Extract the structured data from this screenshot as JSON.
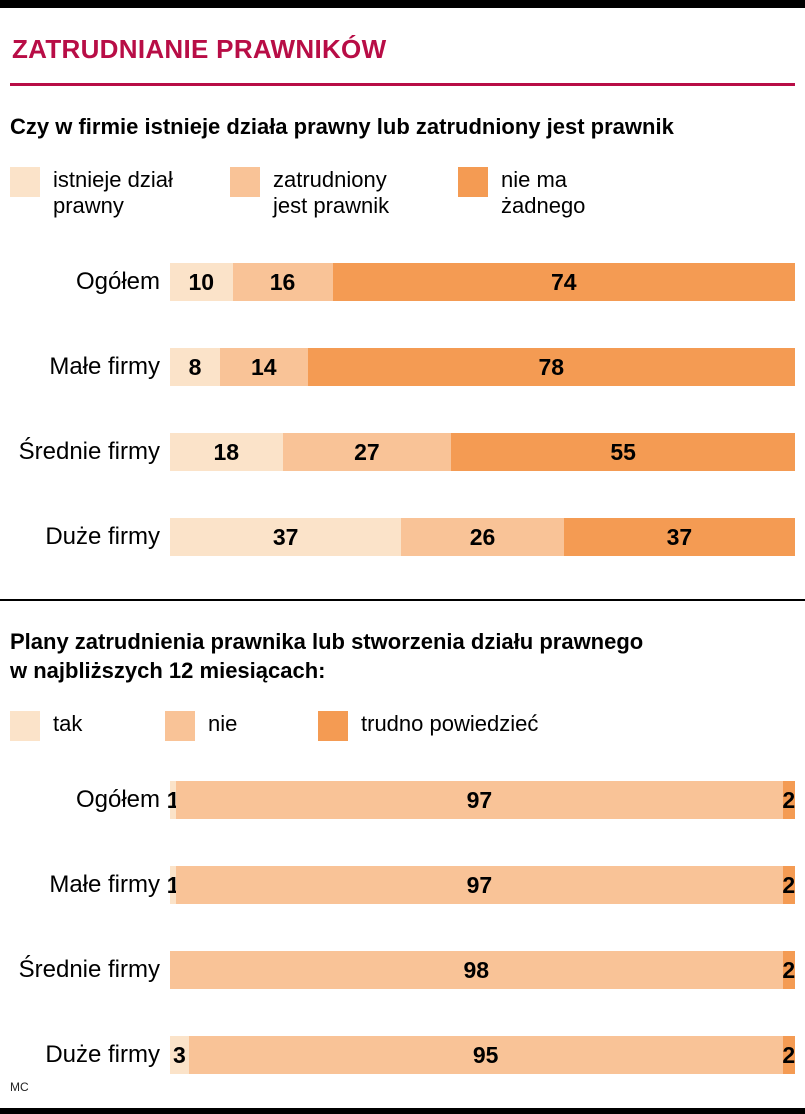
{
  "header": {
    "title": "ZATRUDNIANIE PRAWNIKÓW"
  },
  "footer": {
    "credit": "MC"
  },
  "palette": {
    "light": "#FBE3C9",
    "medium": "#F9C397",
    "dark": "#F49B53",
    "accent": "#B80D46",
    "bar": "#000000"
  },
  "chart_data": [
    {
      "type": "bar",
      "orientation": "horizontal",
      "stacked": true,
      "unit": "%",
      "xlim": [
        0,
        100
      ],
      "title": "Czy w firmie istnieje działa prawny lub zatrudniony jest prawnik",
      "legend": [
        "istnieje dział\nprawny",
        "zatrudniony\njest prawnik",
        "nie ma\nżadnego"
      ],
      "colors": [
        "light",
        "medium",
        "dark"
      ],
      "categories": [
        "Ogółem",
        "Małe firmy",
        "Średnie firmy",
        "Duże firmy"
      ],
      "series": [
        {
          "name": "istnieje dział prawny",
          "values": [
            10,
            8,
            18,
            37
          ]
        },
        {
          "name": "zatrudniony jest prawnik",
          "values": [
            16,
            14,
            27,
            26
          ]
        },
        {
          "name": "nie ma żadnego",
          "values": [
            74,
            78,
            55,
            37
          ]
        }
      ]
    },
    {
      "type": "bar",
      "orientation": "horizontal",
      "stacked": true,
      "unit": "%",
      "xlim": [
        0,
        100
      ],
      "title": "Plany zatrudnienia prawnika lub stworzenia działu prawnego\nw najbliższych 12 miesiącach:",
      "legend": [
        "tak",
        "nie",
        "trudno powiedzieć"
      ],
      "colors": [
        "light",
        "medium",
        "dark"
      ],
      "categories": [
        "Ogółem",
        "Małe firmy",
        "Średnie firmy",
        "Duże firmy"
      ],
      "series": [
        {
          "name": "tak",
          "values": [
            1,
            1,
            0,
            3
          ]
        },
        {
          "name": "nie",
          "values": [
            97,
            97,
            98,
            95
          ]
        },
        {
          "name": "trudno powiedzieć",
          "values": [
            2,
            2,
            2,
            2
          ]
        }
      ]
    }
  ]
}
